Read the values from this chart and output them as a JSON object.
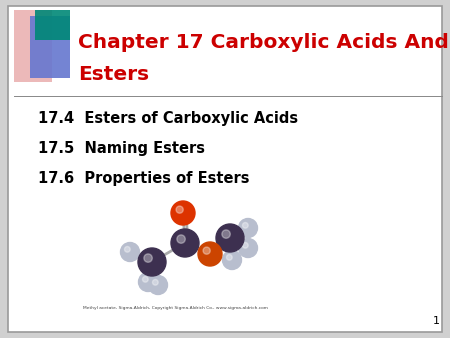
{
  "title_line1": "Chapter 17 Carboxylic Acids And",
  "title_line2": "Esters",
  "title_color": "#cc0000",
  "bullet1": "17.4  Esters of Carboxylic Acids",
  "bullet2": "17.5  Naming Esters",
  "bullet3": "17.6  Properties of Esters",
  "bullet_color": "#000000",
  "bg_color": "#ffffff",
  "border_color": "#999999",
  "outer_bg": "#d0d0d0",
  "page_number": "1",
  "title_fontsize": 14.5,
  "bullet_fontsize": 10.5,
  "molecule_caption": "Methyl acetate, Sigma-Aldrich, Copyright Sigma-Aldrich Co., www.sigma-aldrich.com"
}
